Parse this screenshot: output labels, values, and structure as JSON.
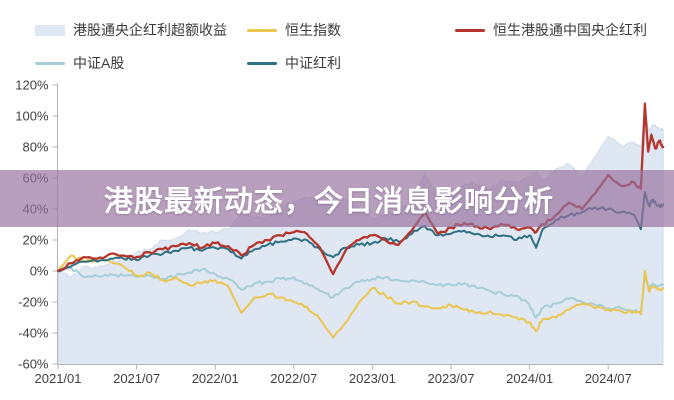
{
  "banner": {
    "title": "港股最新动态，今日消息影响分析"
  },
  "legend": [
    {
      "label": "港股通央企红利超额收益",
      "type": "area",
      "color": "#d9e2ee"
    },
    {
      "label": "恒生指数",
      "type": "line",
      "color": "#e8c84a"
    },
    {
      "label": "恒生港股通中国央企红利",
      "type": "line",
      "color": "#9e2b25"
    },
    {
      "label": "中证A股",
      "type": "line",
      "color": "#a6ced6"
    },
    {
      "label": "中证红利",
      "type": "line",
      "color": "#3d7austin"
    }
  ],
  "chart_data": {
    "type": "area",
    "x_unit": "months since 2021/01",
    "x_domain": [
      0,
      46.2
    ],
    "ylim": [
      -60,
      120
    ],
    "y_tick_suffix": "%",
    "y_ticks": [
      120,
      100,
      80,
      60,
      40,
      20,
      0,
      -20,
      -40,
      -60
    ],
    "x_ticks": [
      {
        "t": 0,
        "label": "2021/01"
      },
      {
        "t": 6,
        "label": "2021/07"
      },
      {
        "t": 12,
        "label": "2022/01"
      },
      {
        "t": 18,
        "label": "2022/07"
      },
      {
        "t": 24,
        "label": "2023/01"
      },
      {
        "t": 30,
        "label": "2023/07"
      },
      {
        "t": 36,
        "label": "2024/01"
      },
      {
        "t": 42,
        "label": "2024/07"
      }
    ],
    "legend_position": "top",
    "grid": false,
    "series": [
      {
        "id": "excess-return-area",
        "name": "港股通央企红利超额收益",
        "kind": "area",
        "color": "#dfe7f2",
        "edge": "#cfdcec",
        "points": [
          [
            0,
            0
          ],
          [
            1,
            -4
          ],
          [
            2,
            3
          ],
          [
            3,
            2
          ],
          [
            4,
            6
          ],
          [
            5,
            8
          ],
          [
            6,
            12
          ],
          [
            7,
            14
          ],
          [
            8,
            20
          ],
          [
            9,
            21
          ],
          [
            10,
            27
          ],
          [
            11,
            24
          ],
          [
            12,
            25
          ],
          [
            13,
            27
          ],
          [
            14,
            37
          ],
          [
            15,
            34
          ],
          [
            16,
            35
          ],
          [
            17,
            40
          ],
          [
            18,
            45
          ],
          [
            19,
            47
          ],
          [
            20,
            46
          ],
          [
            21,
            42
          ],
          [
            22,
            46
          ],
          [
            23,
            41
          ],
          [
            24,
            34
          ],
          [
            25,
            36
          ],
          [
            26,
            38
          ],
          [
            27,
            46
          ],
          [
            28,
            63
          ],
          [
            29,
            48
          ],
          [
            30,
            50
          ],
          [
            31,
            56
          ],
          [
            32,
            56
          ],
          [
            33,
            53
          ],
          [
            34,
            59
          ],
          [
            35,
            57
          ],
          [
            36,
            61
          ],
          [
            36.5,
            64
          ],
          [
            37,
            58
          ],
          [
            38,
            66
          ],
          [
            39,
            69
          ],
          [
            40,
            61
          ],
          [
            41,
            74
          ],
          [
            42,
            87
          ],
          [
            43,
            81
          ],
          [
            44,
            83
          ],
          [
            44.5,
            80
          ],
          [
            44.8,
            103
          ],
          [
            45.1,
            90
          ],
          [
            45.4,
            94
          ],
          [
            45.8,
            92
          ],
          [
            46.2,
            91
          ]
        ]
      },
      {
        "id": "csi-a-share",
        "name": "中证A股",
        "kind": "line",
        "color": "#a6ced6",
        "points": [
          [
            0,
            0
          ],
          [
            1,
            2
          ],
          [
            2,
            -4
          ],
          [
            3,
            -3
          ],
          [
            4,
            -2
          ],
          [
            5,
            -3
          ],
          [
            6,
            -4
          ],
          [
            7,
            -3
          ],
          [
            8,
            -5
          ],
          [
            9,
            -3
          ],
          [
            10,
            -1
          ],
          [
            11,
            1
          ],
          [
            12,
            -2
          ],
          [
            13,
            -5
          ],
          [
            14,
            -12
          ],
          [
            15,
            -8
          ],
          [
            16,
            -7
          ],
          [
            17,
            -5
          ],
          [
            18,
            -4
          ],
          [
            19,
            -8
          ],
          [
            20,
            -13
          ],
          [
            21,
            -17
          ],
          [
            22,
            -11
          ],
          [
            23,
            -7
          ],
          [
            24,
            -5
          ],
          [
            25,
            -4
          ],
          [
            26,
            -6
          ],
          [
            27,
            -6
          ],
          [
            28,
            -7
          ],
          [
            29,
            -9
          ],
          [
            30,
            -9
          ],
          [
            31,
            -8
          ],
          [
            32,
            -11
          ],
          [
            33,
            -13
          ],
          [
            34,
            -15
          ],
          [
            35,
            -16
          ],
          [
            36,
            -22
          ],
          [
            36.5,
            -30
          ],
          [
            37,
            -24
          ],
          [
            38,
            -21
          ],
          [
            39,
            -18
          ],
          [
            40,
            -20
          ],
          [
            41,
            -22
          ],
          [
            42,
            -24
          ],
          [
            43,
            -24
          ],
          [
            44,
            -26
          ],
          [
            44.5,
            -27
          ],
          [
            44.8,
            -3
          ],
          [
            45.1,
            -11
          ],
          [
            45.4,
            -8
          ],
          [
            45.8,
            -10
          ],
          [
            46.2,
            -9
          ]
        ]
      },
      {
        "id": "hang-seng-index",
        "name": "恒生指数",
        "kind": "line",
        "color": "#eac54f",
        "points": [
          [
            0,
            0
          ],
          [
            1,
            10
          ],
          [
            2,
            6
          ],
          [
            3,
            7
          ],
          [
            4,
            6
          ],
          [
            5,
            3
          ],
          [
            6,
            -3
          ],
          [
            7,
            -1
          ],
          [
            8,
            -6
          ],
          [
            9,
            -4
          ],
          [
            10,
            -9
          ],
          [
            11,
            -8
          ],
          [
            12,
            -6
          ],
          [
            13,
            -10
          ],
          [
            14,
            -27
          ],
          [
            15,
            -17
          ],
          [
            16,
            -15
          ],
          [
            17,
            -17
          ],
          [
            18,
            -20
          ],
          [
            19,
            -23
          ],
          [
            20,
            -31
          ],
          [
            21,
            -43
          ],
          [
            22,
            -33
          ],
          [
            23,
            -20
          ],
          [
            24,
            -11
          ],
          [
            25,
            -16
          ],
          [
            26,
            -21
          ],
          [
            27,
            -20
          ],
          [
            28,
            -23
          ],
          [
            29,
            -24
          ],
          [
            30,
            -22
          ],
          [
            31,
            -25
          ],
          [
            32,
            -27
          ],
          [
            33,
            -26
          ],
          [
            34,
            -29
          ],
          [
            35,
            -30
          ],
          [
            36,
            -33
          ],
          [
            36.5,
            -39
          ],
          [
            37,
            -31
          ],
          [
            38,
            -30
          ],
          [
            39,
            -25
          ],
          [
            40,
            -21
          ],
          [
            41,
            -24
          ],
          [
            42,
            -25
          ],
          [
            43,
            -26
          ],
          [
            44,
            -26
          ],
          [
            44.5,
            -28
          ],
          [
            44.8,
            0
          ],
          [
            45.1,
            -13
          ],
          [
            45.4,
            -10
          ],
          [
            45.8,
            -12
          ],
          [
            46.2,
            -11
          ]
        ]
      },
      {
        "id": "csi-dividend",
        "name": "中证红利",
        "kind": "line",
        "color": "#2f7183",
        "points": [
          [
            0,
            0
          ],
          [
            1,
            3
          ],
          [
            2,
            6
          ],
          [
            3,
            6
          ],
          [
            4,
            8
          ],
          [
            5,
            8
          ],
          [
            6,
            7
          ],
          [
            7,
            10
          ],
          [
            8,
            11
          ],
          [
            9,
            13
          ],
          [
            10,
            15
          ],
          [
            11,
            13
          ],
          [
            12,
            15
          ],
          [
            13,
            14
          ],
          [
            14,
            8
          ],
          [
            15,
            14
          ],
          [
            16,
            17
          ],
          [
            17,
            19
          ],
          [
            18,
            21
          ],
          [
            19,
            20
          ],
          [
            20,
            14
          ],
          [
            21,
            9
          ],
          [
            22,
            15
          ],
          [
            23,
            17
          ],
          [
            24,
            18
          ],
          [
            25,
            21
          ],
          [
            26,
            19
          ],
          [
            27,
            24
          ],
          [
            28,
            29
          ],
          [
            29,
            23
          ],
          [
            30,
            24
          ],
          [
            31,
            26
          ],
          [
            32,
            24
          ],
          [
            33,
            22
          ],
          [
            34,
            23
          ],
          [
            35,
            20
          ],
          [
            36,
            23
          ],
          [
            36.5,
            15
          ],
          [
            37,
            27
          ],
          [
            38,
            33
          ],
          [
            39,
            36
          ],
          [
            40,
            38
          ],
          [
            41,
            41
          ],
          [
            42,
            40
          ],
          [
            43,
            38
          ],
          [
            44,
            36
          ],
          [
            44.5,
            27
          ],
          [
            44.8,
            51
          ],
          [
            45.1,
            42
          ],
          [
            45.4,
            46
          ],
          [
            45.8,
            42
          ],
          [
            46.2,
            43
          ]
        ]
      },
      {
        "id": "hs-soe-dividend",
        "name": "恒生港股通中国央企红利",
        "kind": "line",
        "color": "#b5342c",
        "points": [
          [
            0,
            0
          ],
          [
            1,
            5
          ],
          [
            2,
            9
          ],
          [
            3,
            8
          ],
          [
            4,
            11
          ],
          [
            5,
            10
          ],
          [
            6,
            9
          ],
          [
            7,
            12
          ],
          [
            8,
            14
          ],
          [
            9,
            16
          ],
          [
            10,
            18
          ],
          [
            11,
            15
          ],
          [
            12,
            18
          ],
          [
            13,
            16
          ],
          [
            14,
            10
          ],
          [
            15,
            17
          ],
          [
            16,
            20
          ],
          [
            17,
            23
          ],
          [
            18,
            25
          ],
          [
            19,
            24
          ],
          [
            20,
            15
          ],
          [
            21,
            -2
          ],
          [
            22,
            14
          ],
          [
            23,
            20
          ],
          [
            24,
            23
          ],
          [
            25,
            20
          ],
          [
            26,
            17
          ],
          [
            27,
            26
          ],
          [
            28,
            38
          ],
          [
            29,
            24
          ],
          [
            30,
            28
          ],
          [
            31,
            31
          ],
          [
            32,
            29
          ],
          [
            33,
            27
          ],
          [
            34,
            30
          ],
          [
            35,
            27
          ],
          [
            36,
            28
          ],
          [
            36.5,
            25
          ],
          [
            37,
            30
          ],
          [
            38,
            36
          ],
          [
            39,
            44
          ],
          [
            40,
            40
          ],
          [
            41,
            50
          ],
          [
            42,
            62
          ],
          [
            43,
            55
          ],
          [
            44,
            57
          ],
          [
            44.5,
            53
          ],
          [
            44.8,
            108
          ],
          [
            45.05,
            77
          ],
          [
            45.3,
            88
          ],
          [
            45.6,
            79
          ],
          [
            45.9,
            84
          ],
          [
            46.2,
            80
          ]
        ]
      }
    ]
  }
}
